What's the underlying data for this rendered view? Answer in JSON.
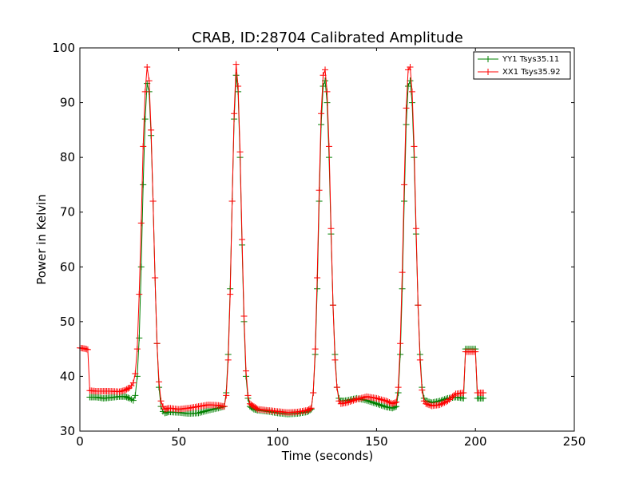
{
  "chart_data": {
    "type": "line",
    "title": "CRAB, ID:28704 Calibrated Amplitude",
    "xlabel": "Time (seconds)",
    "ylabel": "Power in Kelvin",
    "xlim": [
      0,
      250
    ],
    "ylim": [
      30,
      100
    ],
    "xticks": [
      0,
      50,
      100,
      150,
      200,
      250
    ],
    "yticks": [
      30,
      40,
      50,
      60,
      70,
      80,
      90,
      100
    ],
    "grid": false,
    "legend_position": "top-right",
    "marker": "+",
    "series": [
      {
        "name": "YY1 Tsys35.11",
        "color": "#008000",
        "points": [
          [
            5,
            36.2
          ],
          [
            8,
            36.2
          ],
          [
            12,
            36.0
          ],
          [
            15,
            36.1
          ],
          [
            20,
            36.3
          ],
          [
            23,
            36.3
          ],
          [
            25,
            36.0
          ],
          [
            26,
            35.8
          ],
          [
            27,
            35.6
          ],
          [
            28,
            36.5
          ],
          [
            29,
            40
          ],
          [
            30,
            47
          ],
          [
            31,
            60
          ],
          [
            32,
            75
          ],
          [
            33,
            87
          ],
          [
            34,
            93.5
          ],
          [
            35,
            92
          ],
          [
            36,
            84
          ],
          [
            37,
            72
          ],
          [
            38,
            58
          ],
          [
            39,
            46
          ],
          [
            40,
            38
          ],
          [
            41,
            34.5
          ],
          [
            42,
            33.6
          ],
          [
            43,
            33.3
          ],
          [
            45,
            33.5
          ],
          [
            50,
            33.4
          ],
          [
            55,
            33.2
          ],
          [
            60,
            33.3
          ],
          [
            65,
            33.8
          ],
          [
            70,
            34.2
          ],
          [
            73,
            34.5
          ],
          [
            74,
            37
          ],
          [
            75,
            44
          ],
          [
            76,
            56
          ],
          [
            77,
            72
          ],
          [
            78,
            87
          ],
          [
            79,
            95
          ],
          [
            80,
            92
          ],
          [
            81,
            80
          ],
          [
            82,
            64
          ],
          [
            83,
            50
          ],
          [
            84,
            40
          ],
          [
            85,
            36
          ],
          [
            86,
            34.5
          ],
          [
            88,
            34
          ],
          [
            90,
            33.8
          ],
          [
            95,
            33.6
          ],
          [
            100,
            33.3
          ],
          [
            105,
            33.1
          ],
          [
            110,
            33.2
          ],
          [
            115,
            33.5
          ],
          [
            117,
            34
          ],
          [
            118,
            37
          ],
          [
            119,
            44
          ],
          [
            120,
            56
          ],
          [
            121,
            72
          ],
          [
            122,
            86
          ],
          [
            123,
            93
          ],
          [
            124,
            94
          ],
          [
            125,
            90
          ],
          [
            126,
            80
          ],
          [
            127,
            66
          ],
          [
            128,
            53
          ],
          [
            129,
            44
          ],
          [
            130,
            38
          ],
          [
            131,
            36
          ],
          [
            132,
            35.5
          ],
          [
            135,
            35.6
          ],
          [
            140,
            36.0
          ],
          [
            145,
            35.6
          ],
          [
            150,
            35.0
          ],
          [
            155,
            34.4
          ],
          [
            158,
            34.2
          ],
          [
            160,
            34.5
          ],
          [
            161,
            37
          ],
          [
            162,
            44
          ],
          [
            163,
            56
          ],
          [
            164,
            72
          ],
          [
            165,
            86
          ],
          [
            166,
            93
          ],
          [
            167,
            94
          ],
          [
            168,
            90
          ],
          [
            169,
            80
          ],
          [
            170,
            66
          ],
          [
            171,
            53
          ],
          [
            172,
            44
          ],
          [
            173,
            38
          ],
          [
            174,
            36
          ],
          [
            175,
            35.5
          ],
          [
            178,
            35.2
          ],
          [
            182,
            35.5
          ],
          [
            186,
            36.0
          ],
          [
            190,
            36.2
          ],
          [
            194,
            36.0
          ],
          [
            195,
            45
          ],
          [
            200,
            45
          ],
          [
            201,
            36.0
          ],
          [
            204,
            36.0
          ]
        ]
      },
      {
        "name": "XX1 Tsys35.92",
        "color": "#ff0000",
        "points": [
          [
            0,
            45.2
          ],
          [
            2,
            45.1
          ],
          [
            4,
            44.9
          ],
          [
            5,
            37.4
          ],
          [
            8,
            37.3
          ],
          [
            12,
            37.3
          ],
          [
            15,
            37.3
          ],
          [
            20,
            37.2
          ],
          [
            23,
            37.5
          ],
          [
            25,
            37.9
          ],
          [
            26,
            38.3
          ],
          [
            27,
            38.8
          ],
          [
            28,
            40.5
          ],
          [
            29,
            45
          ],
          [
            30,
            55
          ],
          [
            31,
            68
          ],
          [
            32,
            82
          ],
          [
            33,
            92
          ],
          [
            34,
            96.5
          ],
          [
            35,
            94
          ],
          [
            36,
            85
          ],
          [
            37,
            72
          ],
          [
            38,
            58
          ],
          [
            39,
            46
          ],
          [
            40,
            39
          ],
          [
            41,
            35.5
          ],
          [
            42,
            34.5
          ],
          [
            43,
            34
          ],
          [
            45,
            34.2
          ],
          [
            50,
            34.0
          ],
          [
            55,
            34.2
          ],
          [
            60,
            34.5
          ],
          [
            65,
            34.8
          ],
          [
            70,
            34.7
          ],
          [
            73,
            34.5
          ],
          [
            74,
            36.5
          ],
          [
            75,
            43
          ],
          [
            76,
            55
          ],
          [
            77,
            72
          ],
          [
            78,
            88
          ],
          [
            79,
            97
          ],
          [
            80,
            93
          ],
          [
            81,
            81
          ],
          [
            82,
            65
          ],
          [
            83,
            51
          ],
          [
            84,
            41
          ],
          [
            85,
            36.5
          ],
          [
            86,
            35
          ],
          [
            88,
            34.5
          ],
          [
            90,
            34
          ],
          [
            95,
            33.8
          ],
          [
            100,
            33.6
          ],
          [
            105,
            33.4
          ],
          [
            110,
            33.5
          ],
          [
            115,
            33.8
          ],
          [
            117,
            34.2
          ],
          [
            118,
            37
          ],
          [
            119,
            45
          ],
          [
            120,
            58
          ],
          [
            121,
            74
          ],
          [
            122,
            88
          ],
          [
            123,
            95
          ],
          [
            124,
            96
          ],
          [
            125,
            92
          ],
          [
            126,
            82
          ],
          [
            127,
            67
          ],
          [
            128,
            53
          ],
          [
            129,
            43
          ],
          [
            130,
            38
          ],
          [
            131,
            35.5
          ],
          [
            132,
            35
          ],
          [
            135,
            35.2
          ],
          [
            140,
            35.8
          ],
          [
            145,
            36.3
          ],
          [
            150,
            36.0
          ],
          [
            155,
            35.5
          ],
          [
            158,
            35.0
          ],
          [
            160,
            35.3
          ],
          [
            161,
            38
          ],
          [
            162,
            46
          ],
          [
            163,
            59
          ],
          [
            164,
            75
          ],
          [
            165,
            89
          ],
          [
            166,
            96
          ],
          [
            167,
            96.5
          ],
          [
            168,
            92
          ],
          [
            169,
            82
          ],
          [
            170,
            67
          ],
          [
            171,
            53
          ],
          [
            172,
            43
          ],
          [
            173,
            37.5
          ],
          [
            174,
            35.5
          ],
          [
            175,
            35
          ],
          [
            178,
            34.6
          ],
          [
            182,
            34.8
          ],
          [
            186,
            35.5
          ],
          [
            190,
            36.8
          ],
          [
            194,
            37.0
          ],
          [
            195,
            44.5
          ],
          [
            200,
            44.5
          ],
          [
            201,
            37
          ],
          [
            204,
            37
          ]
        ]
      }
    ]
  }
}
